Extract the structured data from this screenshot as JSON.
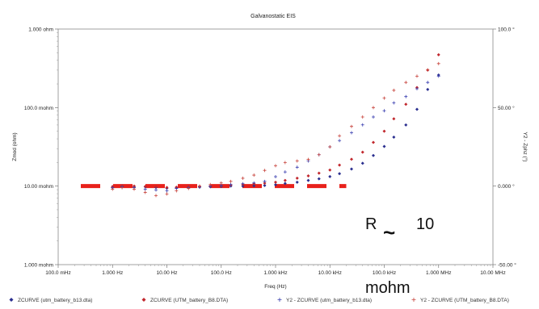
{
  "chart_data": {
    "type": "scatter",
    "title": "Galvanostatic EIS",
    "xlabel": "Freq (Hz)",
    "ylabel": "Zmod (ohm)",
    "y2label": "Y2 - Zphz (°)",
    "x_scale": "log",
    "y_scale": "log",
    "xlim": [
      0.1,
      10000000
    ],
    "ylim": [
      1,
      1000
    ],
    "y2lim": [
      -50,
      100
    ],
    "x_ticks": [
      "100.0 mHz",
      "1.000 Hz",
      "10.00 Hz",
      "100.0 Hz",
      "1.000 kHz",
      "10.00 kHz",
      "100.0 kHz",
      "1.000 MHz",
      "10.00 MHz"
    ],
    "y_ticks": [
      "1.000 ohm",
      "100.0 mohm",
      "10.00 mohm",
      "1.000 mohm"
    ],
    "y2_ticks": [
      "100.0 °",
      "50.00 °",
      "0.000 °",
      "-50.00 °"
    ],
    "grid": false,
    "legend_position": "bottom",
    "series": [
      {
        "name": "ZCURVE (utm_battery_b13.dta)",
        "marker": "diamond",
        "color": "#2b2f8f",
        "x": [
          1,
          1.5,
          2.5,
          4,
          6.3,
          10,
          15,
          25,
          40,
          63,
          100,
          150,
          250,
          400,
          630,
          1000,
          1500,
          2500,
          4000,
          6300,
          10000,
          15000,
          25000,
          40000,
          63000,
          100000,
          150000,
          250000,
          400000,
          630000,
          1000000
        ],
        "y": [
          9.6,
          9.9,
          9.7,
          9.8,
          9.6,
          9.4,
          9.5,
          9.6,
          9.7,
          9.8,
          9.9,
          10,
          10,
          10.1,
          10.2,
          10.4,
          10.8,
          11.2,
          11.8,
          12.4,
          13.2,
          14.4,
          16.5,
          19.5,
          24.5,
          32,
          42,
          60,
          95,
          170,
          260
        ]
      },
      {
        "name": "ZCURVE (UTM_battery_B8.DTA)",
        "marker": "diamond",
        "color": "#c1272d",
        "x": [
          1,
          1.5,
          2.5,
          4,
          6.3,
          10,
          15,
          25,
          40,
          63,
          100,
          150,
          250,
          400,
          630,
          1000,
          1500,
          2500,
          4000,
          6300,
          10000,
          15000,
          25000,
          40000,
          63000,
          100000,
          150000,
          250000,
          400000,
          630000,
          1000000
        ],
        "y": [
          9.9,
          10.1,
          10,
          9.9,
          9.8,
          9.6,
          9.7,
          9.8,
          9.9,
          10,
          10.1,
          10.3,
          10.5,
          10.7,
          10.9,
          11.2,
          11.8,
          12.6,
          13.5,
          14.6,
          16,
          18.5,
          22,
          27,
          36,
          50,
          72,
          110,
          180,
          300,
          470
        ]
      },
      {
        "name": "Y2 - ZCURVE (utm_battery_b13.dta)",
        "marker": "plus",
        "color": "#3a3fb0",
        "x": [
          1,
          1.5,
          2.5,
          4,
          6.3,
          10,
          15,
          25,
          40,
          63,
          100,
          150,
          250,
          400,
          630,
          1000,
          1500,
          2500,
          4000,
          6300,
          10000,
          15000,
          25000,
          40000,
          63000,
          100000,
          150000,
          250000,
          400000,
          630000,
          1000000
        ],
        "y": [
          -1,
          -0.5,
          -1,
          -2,
          -2.5,
          -3,
          -1.5,
          -1,
          -0.5,
          0,
          0.5,
          1,
          1.5,
          2,
          3,
          6,
          9,
          12,
          16,
          20,
          25,
          29,
          34,
          39,
          44,
          48,
          53,
          57,
          62,
          66,
          70
        ]
      },
      {
        "name": "Y2 - ZCURVE (UTM_battery_B8.DTA)",
        "marker": "plus",
        "color": "#c8453e",
        "x": [
          1,
          1.5,
          2.5,
          4,
          6.3,
          10,
          15,
          25,
          40,
          63,
          100,
          150,
          250,
          400,
          630,
          1000,
          1500,
          2500,
          4000,
          6300,
          10000,
          15000,
          25000,
          40000,
          63000,
          100000,
          150000,
          250000,
          400000,
          630000,
          1000000
        ],
        "y": [
          -2,
          -1,
          -2,
          -4,
          -6,
          -5,
          -3,
          -1.5,
          0,
          1,
          2,
          3,
          5,
          7,
          10,
          13,
          15,
          16,
          17,
          20,
          25,
          32,
          38,
          44,
          50,
          56,
          61,
          66,
          70,
          74,
          78
        ]
      }
    ],
    "reference_line": {
      "y": 10,
      "style": "dashed",
      "color": "#e8211b"
    },
    "annotation": {
      "prefix": "R",
      "symbol": "~",
      "value": "10",
      "unit": "mohm"
    }
  }
}
